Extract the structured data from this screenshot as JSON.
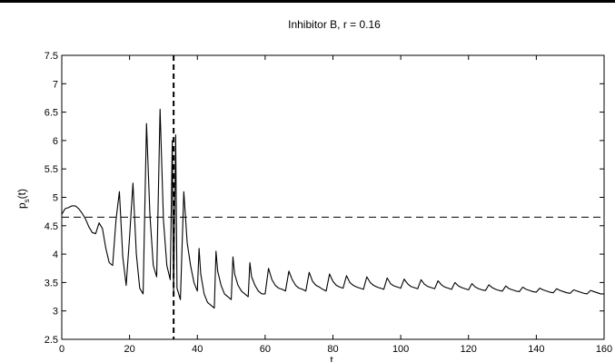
{
  "chart_data": {
    "type": "line",
    "title": "Inhibitor B, r = 0.16",
    "xlabel": "t",
    "ylabel": "p",
    "ylabel_sub": "s",
    "ylabel_suffix": "(t)",
    "xlim": [
      0,
      160
    ],
    "ylim": [
      2.5,
      7.5
    ],
    "xticks": [
      0,
      20,
      40,
      60,
      80,
      100,
      120,
      140,
      160
    ],
    "yticks": [
      2.5,
      3,
      3.5,
      4,
      4.5,
      5,
      5.5,
      6,
      6.5,
      7,
      7.5
    ],
    "grid": false,
    "reference_lines": [
      {
        "orientation": "horizontal",
        "value": 4.65,
        "style": "dashed"
      },
      {
        "orientation": "vertical",
        "value": 33,
        "style": "dashed"
      }
    ],
    "series": [
      {
        "x": [
          0,
          1,
          2,
          3,
          4,
          5,
          6,
          7,
          8,
          9,
          10,
          11,
          12,
          13,
          14,
          15,
          16,
          17,
          18,
          19,
          20,
          21,
          22,
          23,
          24,
          25,
          26,
          27,
          28,
          29,
          30,
          31,
          32,
          32.6,
          33,
          33.6,
          34,
          35,
          36,
          37,
          38,
          39,
          40,
          40.5,
          41,
          42,
          43,
          44,
          45,
          45.5,
          46,
          47,
          48,
          49,
          50,
          50.5,
          51,
          52,
          53,
          54,
          55,
          55.5,
          56,
          57,
          58,
          59,
          60,
          61,
          62,
          63,
          64,
          65,
          66,
          67,
          68,
          69,
          70,
          71,
          72,
          73,
          74,
          75,
          76,
          77,
          78,
          79,
          80,
          81,
          82,
          83,
          84,
          85,
          86,
          87,
          88,
          89,
          90,
          91,
          92,
          93,
          94,
          95,
          96,
          97,
          98,
          99,
          100,
          101,
          102,
          103,
          104,
          105,
          106,
          107,
          108,
          109,
          110,
          111,
          112,
          113,
          114,
          115,
          116,
          117,
          118,
          119,
          120,
          121,
          122,
          123,
          124,
          125,
          126,
          127,
          128,
          129,
          130,
          131,
          132,
          133,
          134,
          135,
          136,
          137,
          138,
          139,
          140,
          141,
          142,
          143,
          144,
          145,
          146,
          147,
          148,
          149,
          150,
          151,
          152,
          153,
          154,
          155,
          156,
          157,
          158,
          159,
          160
        ],
        "y": [
          4.7,
          4.8,
          4.82,
          4.85,
          4.85,
          4.8,
          4.72,
          4.62,
          4.48,
          4.38,
          4.36,
          4.55,
          4.45,
          4.1,
          3.85,
          3.8,
          4.6,
          5.1,
          3.95,
          3.45,
          4.3,
          5.25,
          4.0,
          3.4,
          3.3,
          6.3,
          4.7,
          3.8,
          3.6,
          6.55,
          4.6,
          3.8,
          3.55,
          6.0,
          3.3,
          6.1,
          3.4,
          3.2,
          5.1,
          4.2,
          3.8,
          3.5,
          3.35,
          4.1,
          3.65,
          3.3,
          3.15,
          3.1,
          3.05,
          4.05,
          3.7,
          3.45,
          3.3,
          3.25,
          3.2,
          3.95,
          3.65,
          3.45,
          3.35,
          3.3,
          3.25,
          3.85,
          3.6,
          3.45,
          3.35,
          3.3,
          3.3,
          3.75,
          3.55,
          3.45,
          3.4,
          3.38,
          3.35,
          3.7,
          3.55,
          3.45,
          3.4,
          3.38,
          3.35,
          3.68,
          3.52,
          3.45,
          3.42,
          3.38,
          3.35,
          3.65,
          3.52,
          3.45,
          3.42,
          3.4,
          3.62,
          3.5,
          3.45,
          3.42,
          3.4,
          3.38,
          3.6,
          3.5,
          3.45,
          3.42,
          3.4,
          3.38,
          3.58,
          3.48,
          3.44,
          3.42,
          3.4,
          3.56,
          3.48,
          3.43,
          3.41,
          3.39,
          3.55,
          3.47,
          3.43,
          3.41,
          3.39,
          3.53,
          3.46,
          3.42,
          3.4,
          3.38,
          3.5,
          3.44,
          3.41,
          3.39,
          3.37,
          3.48,
          3.42,
          3.39,
          3.37,
          3.36,
          3.46,
          3.41,
          3.38,
          3.36,
          3.35,
          3.44,
          3.39,
          3.37,
          3.35,
          3.34,
          3.42,
          3.38,
          3.36,
          3.34,
          3.33,
          3.4,
          3.37,
          3.35,
          3.33,
          3.32,
          3.39,
          3.36,
          3.34,
          3.32,
          3.31,
          3.37,
          3.35,
          3.33,
          3.31,
          3.3,
          3.36,
          3.34,
          3.32,
          3.3,
          3.3
        ]
      }
    ]
  }
}
